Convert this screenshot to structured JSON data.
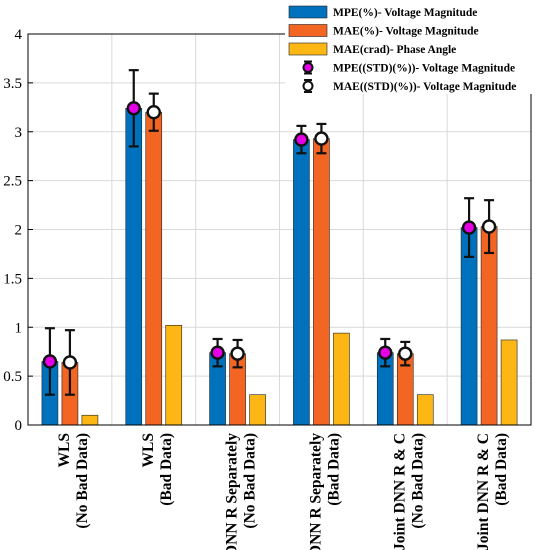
{
  "chart_data": {
    "type": "bar",
    "categories": [
      [
        "WLS",
        "(No Bad Data)"
      ],
      [
        "WLS",
        "(Bad Data)"
      ],
      [
        "DNN R Separately",
        "(No Bad Data)"
      ],
      [
        "DNN R Separately",
        "(Bad Data)"
      ],
      [
        "Joint DNN R & C",
        "(No Bad Data)"
      ],
      [
        "Joint DNN R & C",
        "(Bad Data)"
      ]
    ],
    "series": [
      {
        "name": "MPE(%)- Voltage Magnitude",
        "color": "#0072BD",
        "values": [
          0.65,
          3.24,
          0.74,
          2.92,
          0.74,
          2.02
        ]
      },
      {
        "name": "MAE(%)- Voltage Magnitude",
        "color": "#F26522",
        "values": [
          0.64,
          3.2,
          0.73,
          2.93,
          0.73,
          2.03
        ]
      },
      {
        "name": "MAE(crad)- Phase Angle",
        "color": "#FDB714",
        "values": [
          0.1,
          1.02,
          0.31,
          0.94,
          0.31,
          0.87
        ]
      }
    ],
    "error_series": [
      {
        "name": "MPE((STD)(%))- Voltage Magnitude",
        "marker_color": "#E600E6",
        "center": [
          0.65,
          3.24,
          0.74,
          2.92,
          0.74,
          2.02
        ],
        "std": [
          0.34,
          0.39,
          0.14,
          0.14,
          0.14,
          0.3
        ]
      },
      {
        "name": "MAE((STD)(%))- Voltage Magnitude",
        "marker_color": "#ffffff",
        "center": [
          0.64,
          3.2,
          0.73,
          2.93,
          0.73,
          2.03
        ],
        "std": [
          0.33,
          0.19,
          0.14,
          0.15,
          0.12,
          0.27
        ]
      }
    ],
    "ylim": [
      0,
      4
    ],
    "yticks": [
      "0",
      "0.5",
      "1",
      "1.5",
      "2",
      "2.5",
      "3",
      "3.5",
      "4"
    ],
    "grid": true,
    "legend": "top-right"
  }
}
